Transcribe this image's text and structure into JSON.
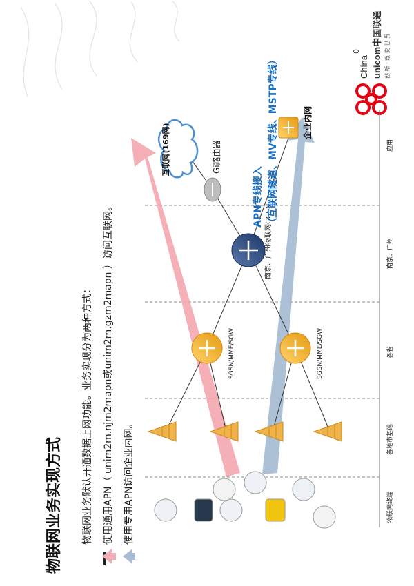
{
  "slide": {
    "title": "物联网业务实现方式",
    "bullet1": "物联网业务默认开通数据上网功能。业务实现分为两种方式：",
    "bullet2": "使用通用APN（ unim2m.njm2mapn或unim2m.gzm2mapn ）访问互联网。",
    "bullet3": "使用专用APN访问企业内网。",
    "page_number": "0"
  },
  "logo": {
    "line1": "China",
    "line2": "unicom中国联通",
    "tagline": "创 新 · 改 变 世 界",
    "brand_color": "#e60012"
  },
  "diagram": {
    "internet": "互联网(169网)",
    "gi_router": "Gi路由器",
    "ggsn": "南京、广州物联网GGSN",
    "sgsn_top": "SGSN/MME/SGW",
    "sgsn_bottom": "SGSN/MME/SGW",
    "apn_line1": "APN专线接入",
    "apn_line2": "（互联网隧道、MV专线、MSTP专线）",
    "enterprise": "企业内网",
    "columns": [
      "物联网终端",
      "各地市基站",
      "各省",
      "南京、广州",
      "应用"
    ],
    "colors": {
      "path_internet": "#f4a6ae",
      "path_private": "#a8bdd4",
      "title_blue": "#1a6fc4"
    }
  }
}
